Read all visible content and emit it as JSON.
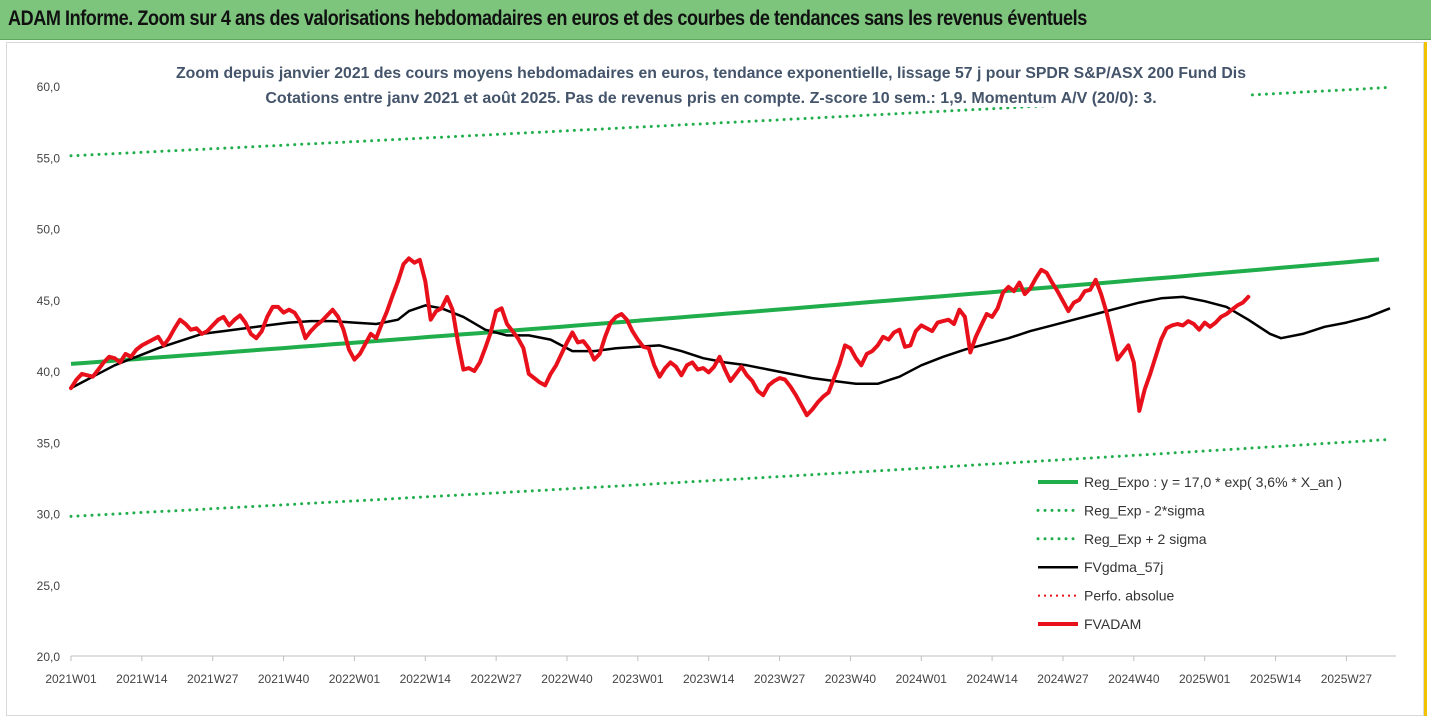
{
  "banner": {
    "title": "ADAM Informe. Zoom sur 4 ans des valorisations hebdomadaires en euros et des courbes de tendances sans les revenus éventuels"
  },
  "colors": {
    "trend": "#1fae4b",
    "band": "#1fae4b",
    "sma": "#000000",
    "price": "#e8101a",
    "perf": "#e8101a",
    "axis_text": "#444444",
    "title_text": "#44546a"
  },
  "chart_data": {
    "type": "line",
    "title_line1": "Zoom depuis janvier 2021 des cours moyens hebdomadaires en euros, tendance exponentielle, lissage 57 j pour SPDR S&P/ASX 200 Fund Dis",
    "title_line2": "Cotations entre janv 2021 et août 2025.  Pas de revenus pris en compte. Z-score 10 sem.: 1,9. Momentum A/V (20/0): 3.",
    "xlabel": "",
    "ylabel": "",
    "ylim": [
      20,
      60
    ],
    "y_ticks": [
      "20,0",
      "25,0",
      "30,0",
      "35,0",
      "40,0",
      "45,0",
      "50,0",
      "55,0",
      "60,0"
    ],
    "y_tick_values": [
      20,
      25,
      30,
      35,
      40,
      45,
      50,
      55,
      60
    ],
    "x_ticks": [
      "2021W01",
      "2021W14",
      "2021W27",
      "2021W40",
      "2022W01",
      "2022W14",
      "2022W27",
      "2022W40",
      "2023W01",
      "2023W14",
      "2023W27",
      "2023W40",
      "2024W01",
      "2024W14",
      "2024W27",
      "2024W40",
      "2025W01",
      "2025W14",
      "2025W27"
    ],
    "x_tick_weeks": [
      0,
      13,
      26,
      39,
      52,
      65,
      78,
      91,
      104,
      117,
      130,
      143,
      156,
      169,
      182,
      195,
      208,
      221,
      234
    ],
    "n_weeks": 243,
    "grid": false,
    "legend_placement": "bottom-right",
    "trend": {
      "coef": 17.0,
      "rate": 0.036,
      "start_value": 40.5,
      "end_value": 47.9
    },
    "band_lower": {
      "start_value": 29.8,
      "end_value": 35.2
    },
    "band_upper": {
      "start_value": 55.1,
      "end_value": 59.9
    },
    "series": [
      {
        "name": "Reg_Expo : y = 17,0 * exp( 3,6% *  X_an )",
        "key": "trend",
        "style": "solid-thick"
      },
      {
        "name": "Reg_Exp - 2*sigma",
        "key": "band_lower",
        "style": "dotted"
      },
      {
        "name": "Reg_Exp + 2 sigma",
        "key": "band_upper",
        "style": "dotted"
      },
      {
        "name": "FVgdma_57j",
        "key": "sma",
        "style": "solid",
        "points": [
          [
            0,
            38.8
          ],
          [
            4,
            39.6
          ],
          [
            8,
            40.4
          ],
          [
            12,
            41.0
          ],
          [
            16,
            41.6
          ],
          [
            20,
            42.1
          ],
          [
            24,
            42.6
          ],
          [
            28,
            42.8
          ],
          [
            32,
            43.0
          ],
          [
            36,
            43.2
          ],
          [
            40,
            43.4
          ],
          [
            44,
            43.5
          ],
          [
            48,
            43.5
          ],
          [
            52,
            43.4
          ],
          [
            56,
            43.3
          ],
          [
            60,
            43.6
          ],
          [
            62,
            44.2
          ],
          [
            65,
            44.6
          ],
          [
            68,
            44.4
          ],
          [
            72,
            43.8
          ],
          [
            76,
            42.9
          ],
          [
            80,
            42.5
          ],
          [
            84,
            42.5
          ],
          [
            88,
            42.2
          ],
          [
            90,
            41.8
          ],
          [
            92,
            41.4
          ],
          [
            96,
            41.4
          ],
          [
            100,
            41.6
          ],
          [
            104,
            41.7
          ],
          [
            108,
            41.8
          ],
          [
            112,
            41.4
          ],
          [
            116,
            40.9
          ],
          [
            120,
            40.6
          ],
          [
            124,
            40.4
          ],
          [
            128,
            40.1
          ],
          [
            132,
            39.8
          ],
          [
            136,
            39.5
          ],
          [
            140,
            39.3
          ],
          [
            144,
            39.1
          ],
          [
            148,
            39.1
          ],
          [
            152,
            39.6
          ],
          [
            156,
            40.4
          ],
          [
            160,
            41.0
          ],
          [
            164,
            41.5
          ],
          [
            168,
            41.9
          ],
          [
            172,
            42.3
          ],
          [
            176,
            42.8
          ],
          [
            180,
            43.2
          ],
          [
            184,
            43.6
          ],
          [
            188,
            44.0
          ],
          [
            192,
            44.4
          ],
          [
            196,
            44.8
          ],
          [
            200,
            45.1
          ],
          [
            204,
            45.2
          ],
          [
            208,
            44.9
          ],
          [
            212,
            44.5
          ],
          [
            216,
            43.6
          ],
          [
            220,
            42.6
          ],
          [
            222,
            42.3
          ],
          [
            226,
            42.6
          ],
          [
            230,
            43.1
          ],
          [
            234,
            43.4
          ],
          [
            238,
            43.8
          ],
          [
            242,
            44.4
          ]
        ]
      },
      {
        "name": "Perfo. absolue",
        "key": "perf",
        "style": "dotted-red"
      },
      {
        "name": "FVADAM",
        "key": "price",
        "style": "solid-thick",
        "points": [
          [
            0,
            38.8
          ],
          [
            1,
            39.4
          ],
          [
            2,
            39.8
          ],
          [
            3,
            39.7
          ],
          [
            4,
            39.6
          ],
          [
            5,
            40.1
          ],
          [
            6,
            40.6
          ],
          [
            7,
            41.0
          ],
          [
            8,
            40.9
          ],
          [
            9,
            40.6
          ],
          [
            10,
            41.2
          ],
          [
            11,
            41.0
          ],
          [
            12,
            41.5
          ],
          [
            13,
            41.8
          ],
          [
            14,
            42.0
          ],
          [
            15,
            42.2
          ],
          [
            16,
            42.4
          ],
          [
            17,
            41.8
          ],
          [
            18,
            42.3
          ],
          [
            19,
            43.0
          ],
          [
            20,
            43.6
          ],
          [
            21,
            43.3
          ],
          [
            22,
            42.9
          ],
          [
            23,
            43.0
          ],
          [
            24,
            42.6
          ],
          [
            25,
            42.8
          ],
          [
            26,
            43.2
          ],
          [
            27,
            43.6
          ],
          [
            28,
            43.8
          ],
          [
            29,
            43.2
          ],
          [
            30,
            43.6
          ],
          [
            31,
            43.9
          ],
          [
            32,
            43.4
          ],
          [
            33,
            42.6
          ],
          [
            34,
            42.3
          ],
          [
            35,
            42.8
          ],
          [
            36,
            43.8
          ],
          [
            37,
            44.5
          ],
          [
            38,
            44.5
          ],
          [
            39,
            44.1
          ],
          [
            40,
            44.3
          ],
          [
            41,
            44.1
          ],
          [
            42,
            43.5
          ],
          [
            43,
            42.3
          ],
          [
            44,
            42.8
          ],
          [
            45,
            43.2
          ],
          [
            46,
            43.5
          ],
          [
            47,
            43.9
          ],
          [
            48,
            44.3
          ],
          [
            49,
            43.8
          ],
          [
            50,
            42.9
          ],
          [
            51,
            41.5
          ],
          [
            52,
            40.8
          ],
          [
            53,
            41.2
          ],
          [
            54,
            41.9
          ],
          [
            55,
            42.6
          ],
          [
            56,
            42.3
          ],
          [
            57,
            43.3
          ],
          [
            58,
            44.2
          ],
          [
            59,
            45.3
          ],
          [
            60,
            46.3
          ],
          [
            61,
            47.5
          ],
          [
            62,
            47.9
          ],
          [
            63,
            47.6
          ],
          [
            64,
            47.8
          ],
          [
            65,
            46.3
          ],
          [
            66,
            43.6
          ],
          [
            67,
            44.2
          ],
          [
            68,
            44.4
          ],
          [
            69,
            45.2
          ],
          [
            70,
            44.3
          ],
          [
            71,
            42.0
          ],
          [
            72,
            40.1
          ],
          [
            73,
            40.2
          ],
          [
            74,
            40.0
          ],
          [
            75,
            40.6
          ],
          [
            76,
            41.6
          ],
          [
            77,
            42.7
          ],
          [
            78,
            44.2
          ],
          [
            79,
            44.4
          ],
          [
            80,
            43.3
          ],
          [
            81,
            42.8
          ],
          [
            82,
            42.3
          ],
          [
            83,
            41.6
          ],
          [
            84,
            39.8
          ],
          [
            85,
            39.5
          ],
          [
            86,
            39.2
          ],
          [
            87,
            39.0
          ],
          [
            88,
            39.8
          ],
          [
            89,
            40.4
          ],
          [
            90,
            41.2
          ],
          [
            91,
            42.0
          ],
          [
            92,
            42.7
          ],
          [
            93,
            42.0
          ],
          [
            94,
            42.1
          ],
          [
            95,
            41.6
          ],
          [
            96,
            40.8
          ],
          [
            97,
            41.2
          ],
          [
            98,
            42.4
          ],
          [
            99,
            43.4
          ],
          [
            100,
            43.8
          ],
          [
            101,
            44.0
          ],
          [
            102,
            43.6
          ],
          [
            103,
            42.8
          ],
          [
            104,
            42.2
          ],
          [
            105,
            41.7
          ],
          [
            106,
            41.6
          ],
          [
            107,
            40.4
          ],
          [
            108,
            39.6
          ],
          [
            109,
            40.2
          ],
          [
            110,
            40.6
          ],
          [
            111,
            40.3
          ],
          [
            112,
            39.7
          ],
          [
            113,
            40.4
          ],
          [
            114,
            40.6
          ],
          [
            115,
            40.1
          ],
          [
            116,
            40.2
          ],
          [
            117,
            39.9
          ],
          [
            118,
            40.3
          ],
          [
            119,
            41.0
          ],
          [
            120,
            40.1
          ],
          [
            121,
            39.3
          ],
          [
            122,
            39.8
          ],
          [
            123,
            40.3
          ],
          [
            124,
            39.7
          ],
          [
            125,
            39.3
          ],
          [
            126,
            38.6
          ],
          [
            127,
            38.3
          ],
          [
            128,
            39.0
          ],
          [
            129,
            39.3
          ],
          [
            130,
            39.5
          ],
          [
            131,
            39.4
          ],
          [
            132,
            38.9
          ],
          [
            133,
            38.3
          ],
          [
            134,
            37.6
          ],
          [
            135,
            36.9
          ],
          [
            136,
            37.3
          ],
          [
            137,
            37.8
          ],
          [
            138,
            38.2
          ],
          [
            139,
            38.5
          ],
          [
            140,
            39.5
          ],
          [
            141,
            40.5
          ],
          [
            142,
            41.8
          ],
          [
            143,
            41.6
          ],
          [
            144,
            40.9
          ],
          [
            145,
            40.4
          ],
          [
            146,
            41.2
          ],
          [
            147,
            41.4
          ],
          [
            148,
            41.8
          ],
          [
            149,
            42.4
          ],
          [
            150,
            42.2
          ],
          [
            151,
            42.7
          ],
          [
            152,
            42.9
          ],
          [
            153,
            41.7
          ],
          [
            154,
            41.8
          ],
          [
            155,
            42.8
          ],
          [
            156,
            43.2
          ],
          [
            157,
            43.0
          ],
          [
            158,
            42.8
          ],
          [
            159,
            43.4
          ],
          [
            160,
            43.5
          ],
          [
            161,
            43.6
          ],
          [
            162,
            43.3
          ],
          [
            163,
            44.3
          ],
          [
            164,
            43.8
          ],
          [
            165,
            41.3
          ],
          [
            166,
            42.4
          ],
          [
            167,
            43.2
          ],
          [
            168,
            44.0
          ],
          [
            169,
            43.8
          ],
          [
            170,
            44.4
          ],
          [
            171,
            45.5
          ],
          [
            172,
            45.9
          ],
          [
            173,
            45.6
          ],
          [
            174,
            46.2
          ],
          [
            175,
            45.4
          ],
          [
            176,
            45.8
          ],
          [
            177,
            46.5
          ],
          [
            178,
            47.1
          ],
          [
            179,
            46.9
          ],
          [
            180,
            46.2
          ],
          [
            181,
            45.6
          ],
          [
            182,
            44.9
          ],
          [
            183,
            44.2
          ],
          [
            184,
            44.8
          ],
          [
            185,
            45.0
          ],
          [
            186,
            45.6
          ],
          [
            187,
            45.7
          ],
          [
            188,
            46.4
          ],
          [
            189,
            45.4
          ],
          [
            190,
            44.1
          ],
          [
            191,
            42.5
          ],
          [
            192,
            40.8
          ],
          [
            193,
            41.3
          ],
          [
            194,
            41.8
          ],
          [
            195,
            40.6
          ],
          [
            196,
            37.2
          ],
          [
            197,
            38.7
          ],
          [
            198,
            39.8
          ],
          [
            199,
            41.0
          ],
          [
            200,
            42.2
          ],
          [
            201,
            43.0
          ],
          [
            202,
            43.2
          ],
          [
            203,
            43.3
          ],
          [
            204,
            43.2
          ],
          [
            205,
            43.5
          ],
          [
            206,
            43.3
          ],
          [
            207,
            42.9
          ],
          [
            208,
            43.4
          ],
          [
            209,
            43.1
          ],
          [
            210,
            43.4
          ],
          [
            211,
            43.8
          ],
          [
            212,
            44.0
          ],
          [
            213,
            44.3
          ],
          [
            214,
            44.6
          ],
          [
            215,
            44.8
          ],
          [
            216,
            45.2
          ]
        ]
      }
    ]
  }
}
